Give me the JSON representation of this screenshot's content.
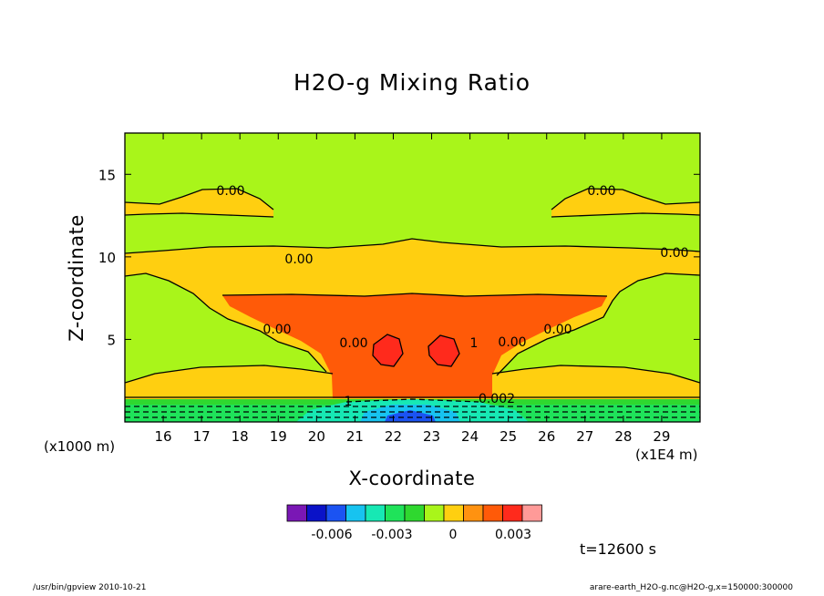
{
  "chart_data": {
    "type": "heatmap",
    "title": "H2O-g Mixing Ratio",
    "xlabel": "X-coordinate",
    "ylabel": "Z-coordinate",
    "x_unit": "(x1E4 m)",
    "y_unit": "(x1000 m)",
    "xlim": [
      15,
      30
    ],
    "ylim": [
      0,
      17.5
    ],
    "x_ticks": [
      16,
      17,
      18,
      19,
      20,
      21,
      22,
      23,
      24,
      25,
      26,
      27,
      28,
      29
    ],
    "y_ticks": [
      5,
      10,
      15
    ],
    "colorbar": {
      "colors": [
        "#7a17b5",
        "#0a12c8",
        "#1b53f2",
        "#17c3f0",
        "#17e8b4",
        "#1fe35a",
        "#2fd82f",
        "#a9f51a",
        "#ffcf10",
        "#ff9210",
        "#ff5a08",
        "#ff2a1c",
        "#ff9a98"
      ],
      "tick_labels": [
        "-0.006",
        "-0.003",
        "0",
        "0.003"
      ]
    },
    "contour_labels": [
      "0.00",
      "0.00",
      "0.00",
      "0.00",
      "0.00",
      "0.00",
      "0.00",
      "1",
      "1",
      "0.002",
      "0.00"
    ],
    "time_label": "t=12600 s",
    "footer_left": "/usr/bin/gpview   2010-10-21",
    "footer_right": "arare-earth_H2O-g.nc@H2O-g,x=150000:300000"
  }
}
